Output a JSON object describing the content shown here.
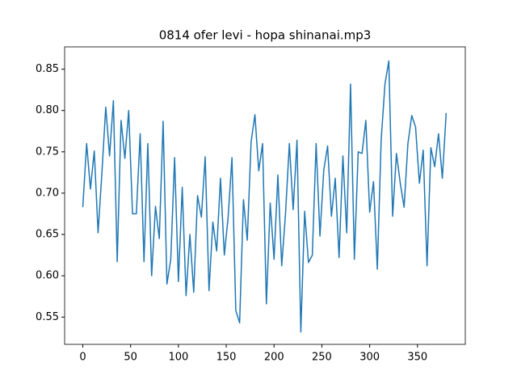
{
  "chart_data": {
    "type": "line",
    "title": "0814 ofer levi - hopa shinanai.mp3",
    "x": [
      0,
      4,
      8,
      12,
      16,
      20,
      24,
      28,
      32,
      36,
      40,
      44,
      48,
      52,
      56,
      60,
      64,
      68,
      72,
      76,
      80,
      84,
      88,
      92,
      96,
      100,
      104,
      108,
      112,
      116,
      120,
      124,
      128,
      132,
      136,
      140,
      144,
      148,
      152,
      156,
      160,
      164,
      168,
      172,
      176,
      180,
      184,
      188,
      192,
      196,
      200,
      204,
      208,
      212,
      216,
      220,
      224,
      228,
      232,
      236,
      240,
      244,
      248,
      252,
      256,
      260,
      264,
      268,
      272,
      276,
      280,
      284,
      288,
      292,
      296,
      300,
      304,
      308,
      312,
      316,
      320,
      324,
      328,
      332,
      336,
      340,
      344,
      348,
      352,
      356,
      360,
      364,
      368,
      372,
      376,
      380
    ],
    "series": [
      {
        "color": "#1f77b4",
        "values": [
          0.683,
          0.76,
          0.705,
          0.751,
          0.652,
          0.725,
          0.804,
          0.745,
          0.812,
          0.617,
          0.788,
          0.742,
          0.8,
          0.675,
          0.675,
          0.772,
          0.617,
          0.76,
          0.6,
          0.684,
          0.645,
          0.787,
          0.59,
          0.62,
          0.743,
          0.593,
          0.707,
          0.576,
          0.65,
          0.58,
          0.697,
          0.671,
          0.744,
          0.582,
          0.665,
          0.63,
          0.718,
          0.625,
          0.671,
          0.743,
          0.558,
          0.543,
          0.692,
          0.643,
          0.762,
          0.795,
          0.727,
          0.76,
          0.566,
          0.688,
          0.62,
          0.722,
          0.612,
          0.675,
          0.76,
          0.68,
          0.764,
          0.532,
          0.678,
          0.616,
          0.625,
          0.76,
          0.648,
          0.728,
          0.757,
          0.672,
          0.718,
          0.622,
          0.745,
          0.652,
          0.832,
          0.62,
          0.75,
          0.748,
          0.788,
          0.677,
          0.714,
          0.608,
          0.764,
          0.832,
          0.86,
          0.672,
          0.748,
          0.712,
          0.683,
          0.76,
          0.794,
          0.78,
          0.712,
          0.752,
          0.612,
          0.755,
          0.732,
          0.772,
          0.718,
          0.797
        ]
      }
    ],
    "xlim": [
      -19,
      400
    ],
    "xticks": [
      0,
      50,
      100,
      150,
      200,
      250,
      300,
      350
    ],
    "ylim": [
      0.517,
      0.877
    ],
    "yticks": [
      0.55,
      {
        "value": 0.6,
        "label": "0.60"
      },
      0.65,
      {
        "value": 0.7,
        "label": "0.70"
      },
      0.75,
      {
        "value": 0.8,
        "label": "0.80"
      },
      0.85
    ]
  }
}
